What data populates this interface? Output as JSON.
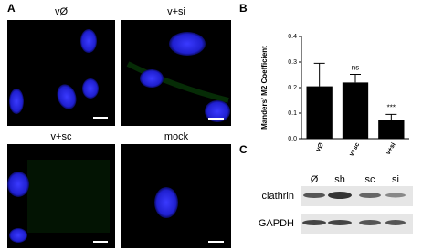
{
  "panels": {
    "a": "A",
    "b": "B",
    "c": "C"
  },
  "images": [
    {
      "label": "vØ"
    },
    {
      "label": "v+si"
    },
    {
      "label": "v+sc"
    },
    {
      "label": "mock"
    }
  ],
  "chart_data": {
    "type": "bar",
    "y_label": "Manders' M2 Coefficient",
    "categories": [
      "v∅",
      "v+sc",
      "v+si"
    ],
    "values": [
      0.205,
      0.22,
      0.075
    ],
    "errors": [
      0.09,
      0.032,
      0.02
    ],
    "color": "#000000",
    "ylim": [
      0,
      0.4
    ],
    "yticks": [
      {
        "value": 0,
        "label": "0.0"
      },
      0.1,
      0.2,
      0.3,
      0.4
    ],
    "annotations": [
      {
        "text": "ns",
        "category": "v+sc"
      },
      {
        "text": "***",
        "category": "v+si"
      }
    ]
  },
  "blot": {
    "lanes": [
      "Ø",
      "sh",
      "sc",
      "si"
    ],
    "rows": [
      "clathrin",
      "GAPDH"
    ]
  }
}
